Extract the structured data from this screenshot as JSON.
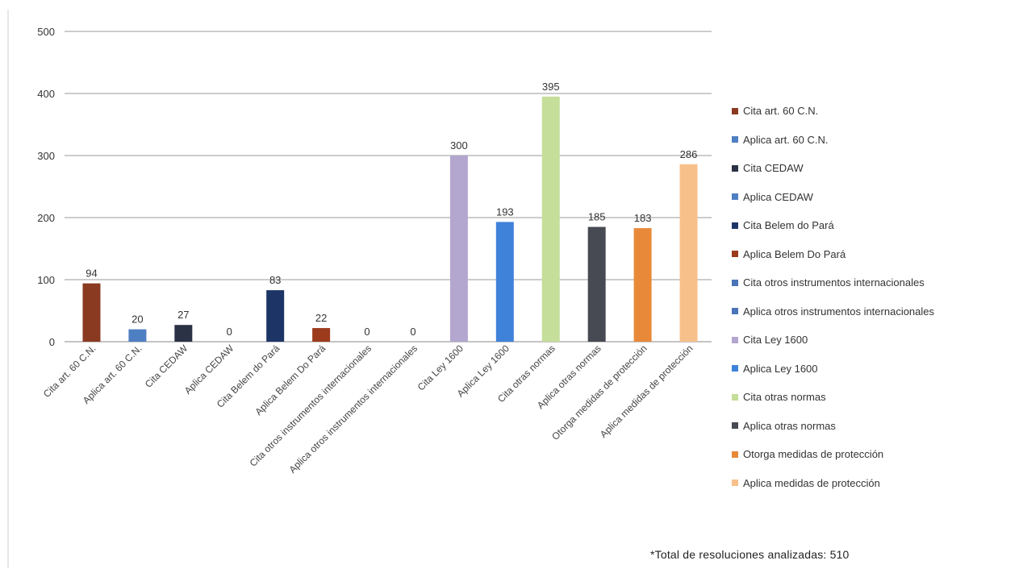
{
  "chart_data": {
    "type": "bar",
    "categories": [
      "Cita art. 60 C.N.",
      "Aplica art. 60 C.N.",
      "Cita CEDAW",
      "Aplica CEDAW",
      "Cita Belem do Pará",
      "Aplica Belem Do Pará",
      "Cita otros instrumentos internacionales",
      "Aplica otros instrumentos internacionales",
      "Cita Ley 1600",
      "Aplica Ley 1600",
      "Cita otras normas",
      "Aplica otras normas",
      "Otorga medidas de protección",
      "Aplica medidas de protección"
    ],
    "values": [
      94,
      20,
      27,
      0,
      83,
      22,
      0,
      0,
      300,
      193,
      395,
      185,
      183,
      286
    ],
    "data_labels": [
      "94",
      "20",
      "27",
      "0",
      "83",
      "22",
      "0",
      "0",
      "300",
      "193",
      "395",
      "185",
      "183",
      "286"
    ],
    "colors": [
      "#8b3a22",
      "#4f7fc3",
      "#2c3245",
      "#4f7fc3",
      "#1c3566",
      "#9c3b1c",
      "#4a74b8",
      "#4a74b8",
      "#b3a6cf",
      "#3f82d9",
      "#c5de9a",
      "#474a52",
      "#e8893a",
      "#f7c08a"
    ],
    "legend": [
      "Cita art. 60 C.N.",
      "Aplica art. 60 C.N.",
      "Cita CEDAW",
      "Aplica CEDAW",
      "Cita Belem do Pará",
      "Aplica Belem Do Pará",
      "Cita otros instrumentos internacionales",
      "Aplica otros instrumentos internacionales",
      "Cita Ley 1600",
      "Aplica Ley 1600",
      "Cita otras normas",
      "Aplica otras normas",
      "Otorga medidas de protección",
      "Aplica medidas de protección"
    ],
    "ylim": [
      0,
      500
    ],
    "yticks": [
      0,
      100,
      200,
      300,
      400,
      500
    ],
    "title": "",
    "xlabel": "",
    "ylabel": "",
    "grid": true,
    "legend_position": "right"
  },
  "footnote": "*Total de resoluciones analizadas:  510"
}
